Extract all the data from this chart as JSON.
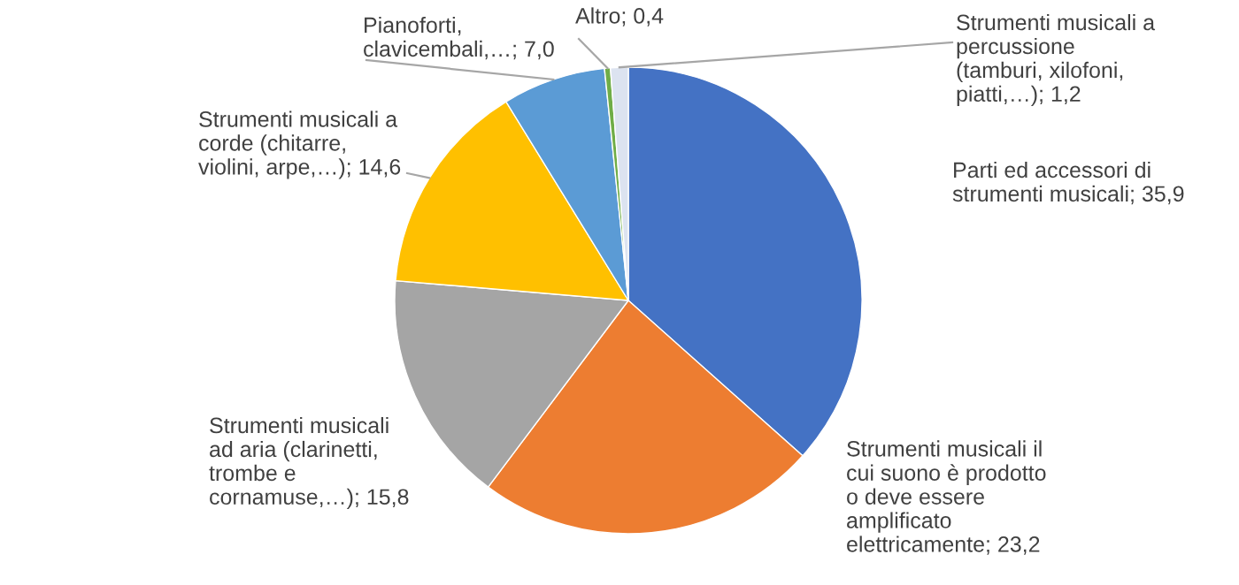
{
  "chart_data": {
    "type": "pie",
    "categories": [
      "Parti ed accessori di strumenti musicali",
      "Strumenti musicali il cui suono è prodotto o deve essere amplificato elettricamente",
      "Strumenti musicali ad aria (clarinetti, trombe e cornamuse,…)",
      "Strumenti musicali a corde (chitarre, violini, arpe,…)",
      "Pianoforti, clavicembali,…",
      "Altro",
      "Strumenti musicali a percussione (tamburi, xilofoni, piatti,…)"
    ],
    "values": [
      35.9,
      23.2,
      15.8,
      14.6,
      7.0,
      0.4,
      1.2
    ],
    "value_labels": [
      "35,9",
      "23,2",
      "15,8",
      "14,6",
      "7,0",
      "0,4",
      "1,2"
    ],
    "colors": [
      "#4472c4",
      "#ed7d31",
      "#a5a5a5",
      "#ffc000",
      "#5b9bd5",
      "#70ad47",
      "#dce3f0"
    ]
  }
}
